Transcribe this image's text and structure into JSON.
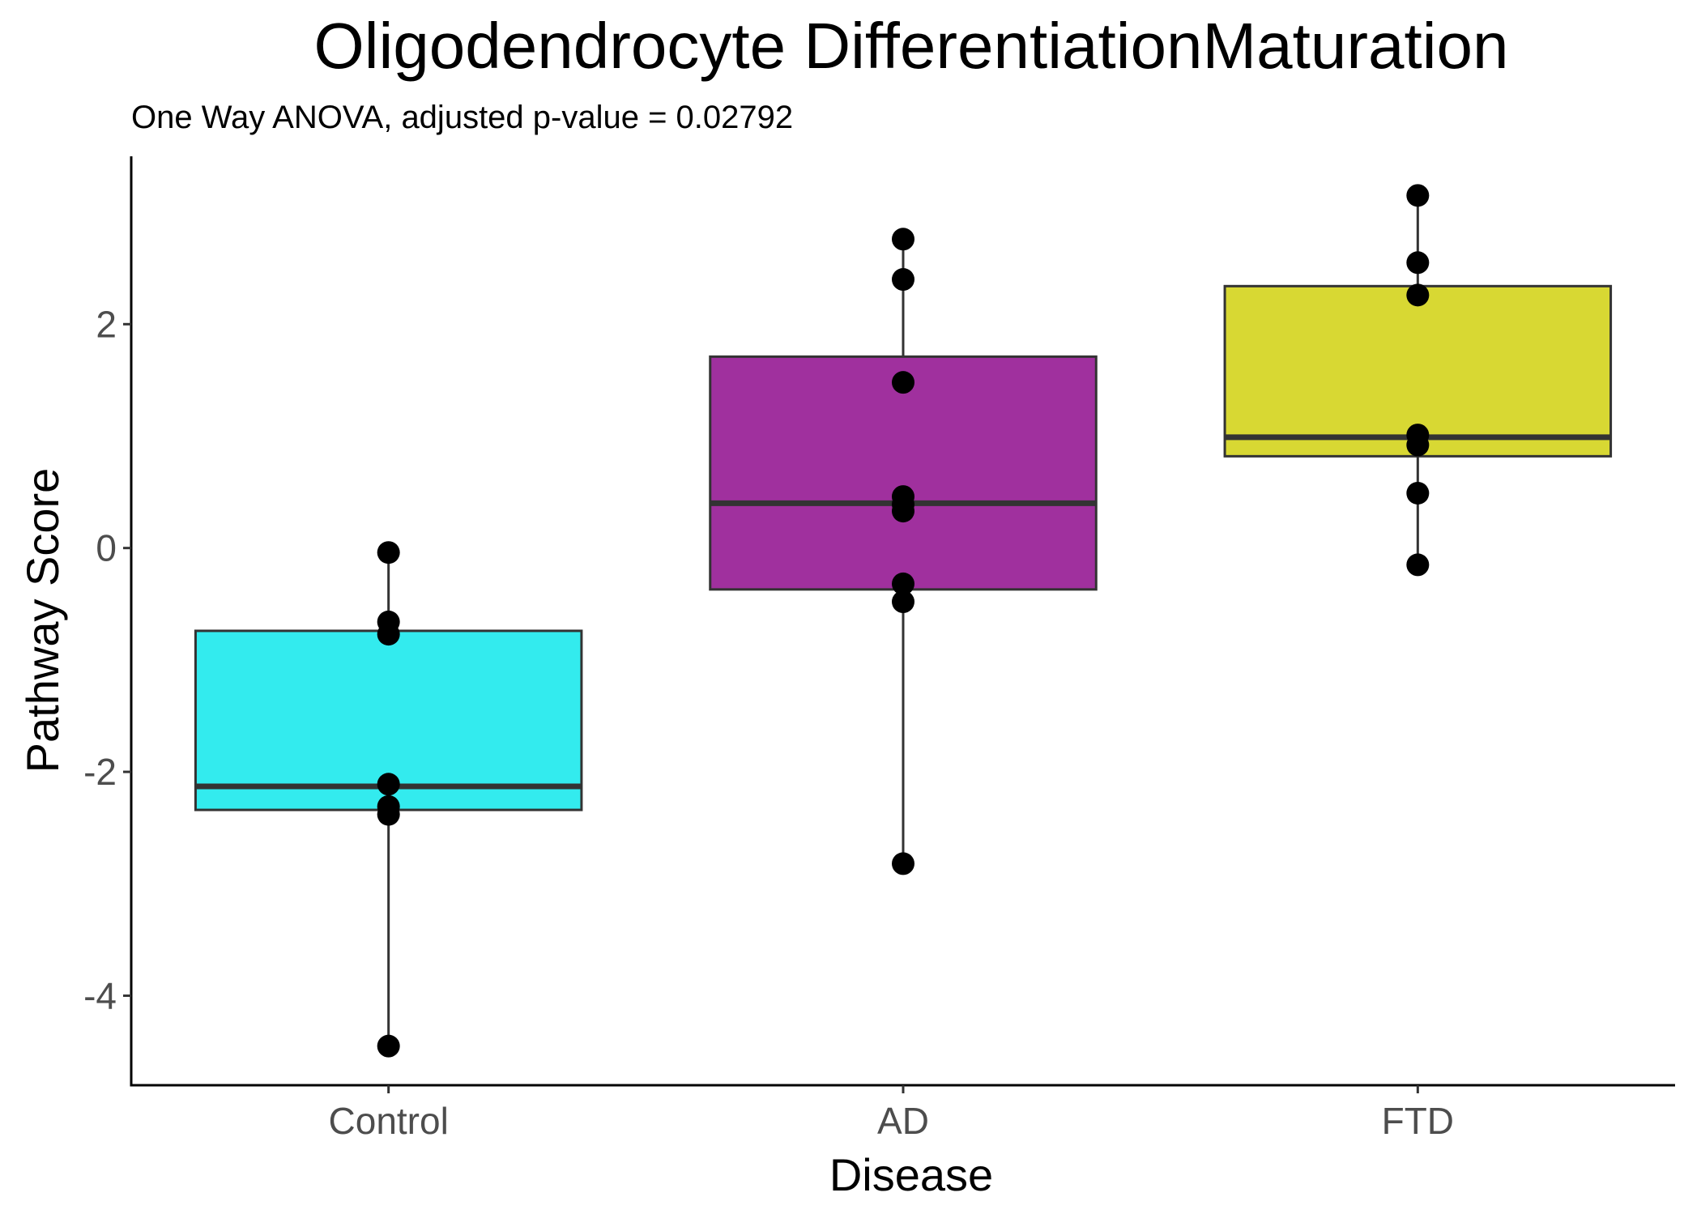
{
  "chart_data": {
    "type": "box",
    "title": "Oligodendrocyte DifferentiationMaturation",
    "subtitle": "One Way ANOVA, adjusted p-value = 0.02792",
    "xlabel": "Disease",
    "ylabel": "Pathway Score",
    "ylim": [
      -4.8,
      3.5
    ],
    "yticks": [
      -4,
      -2,
      0,
      2
    ],
    "ytick_labels": [
      "-4",
      "-2",
      "0",
      "2"
    ],
    "grid": false,
    "legend": "none",
    "categories": [
      "Control",
      "AD",
      "FTD"
    ],
    "groups": [
      {
        "name": "Control",
        "color": "#33ebee",
        "q1": -2.34,
        "median": -2.13,
        "q3": -0.74,
        "whisker_low": -4.45,
        "whisker_high": -0.04,
        "points": [
          -0.04,
          -0.66,
          -0.77,
          -2.11,
          -2.31,
          -2.38,
          -4.45
        ]
      },
      {
        "name": "AD",
        "color": "#a0309e",
        "q1": -0.37,
        "median": 0.4,
        "q3": 1.71,
        "whisker_low": -2.82,
        "whisker_high": 2.76,
        "points": [
          2.76,
          2.4,
          1.48,
          0.46,
          0.39,
          0.33,
          -0.32,
          -0.48,
          -2.82
        ]
      },
      {
        "name": "FTD",
        "color": "#d8d833",
        "q1": 0.82,
        "median": 0.99,
        "q3": 2.34,
        "whisker_low": -0.15,
        "whisker_high": 3.15,
        "points": [
          3.15,
          2.55,
          2.26,
          1.01,
          0.92,
          0.49,
          -0.15
        ]
      }
    ]
  }
}
